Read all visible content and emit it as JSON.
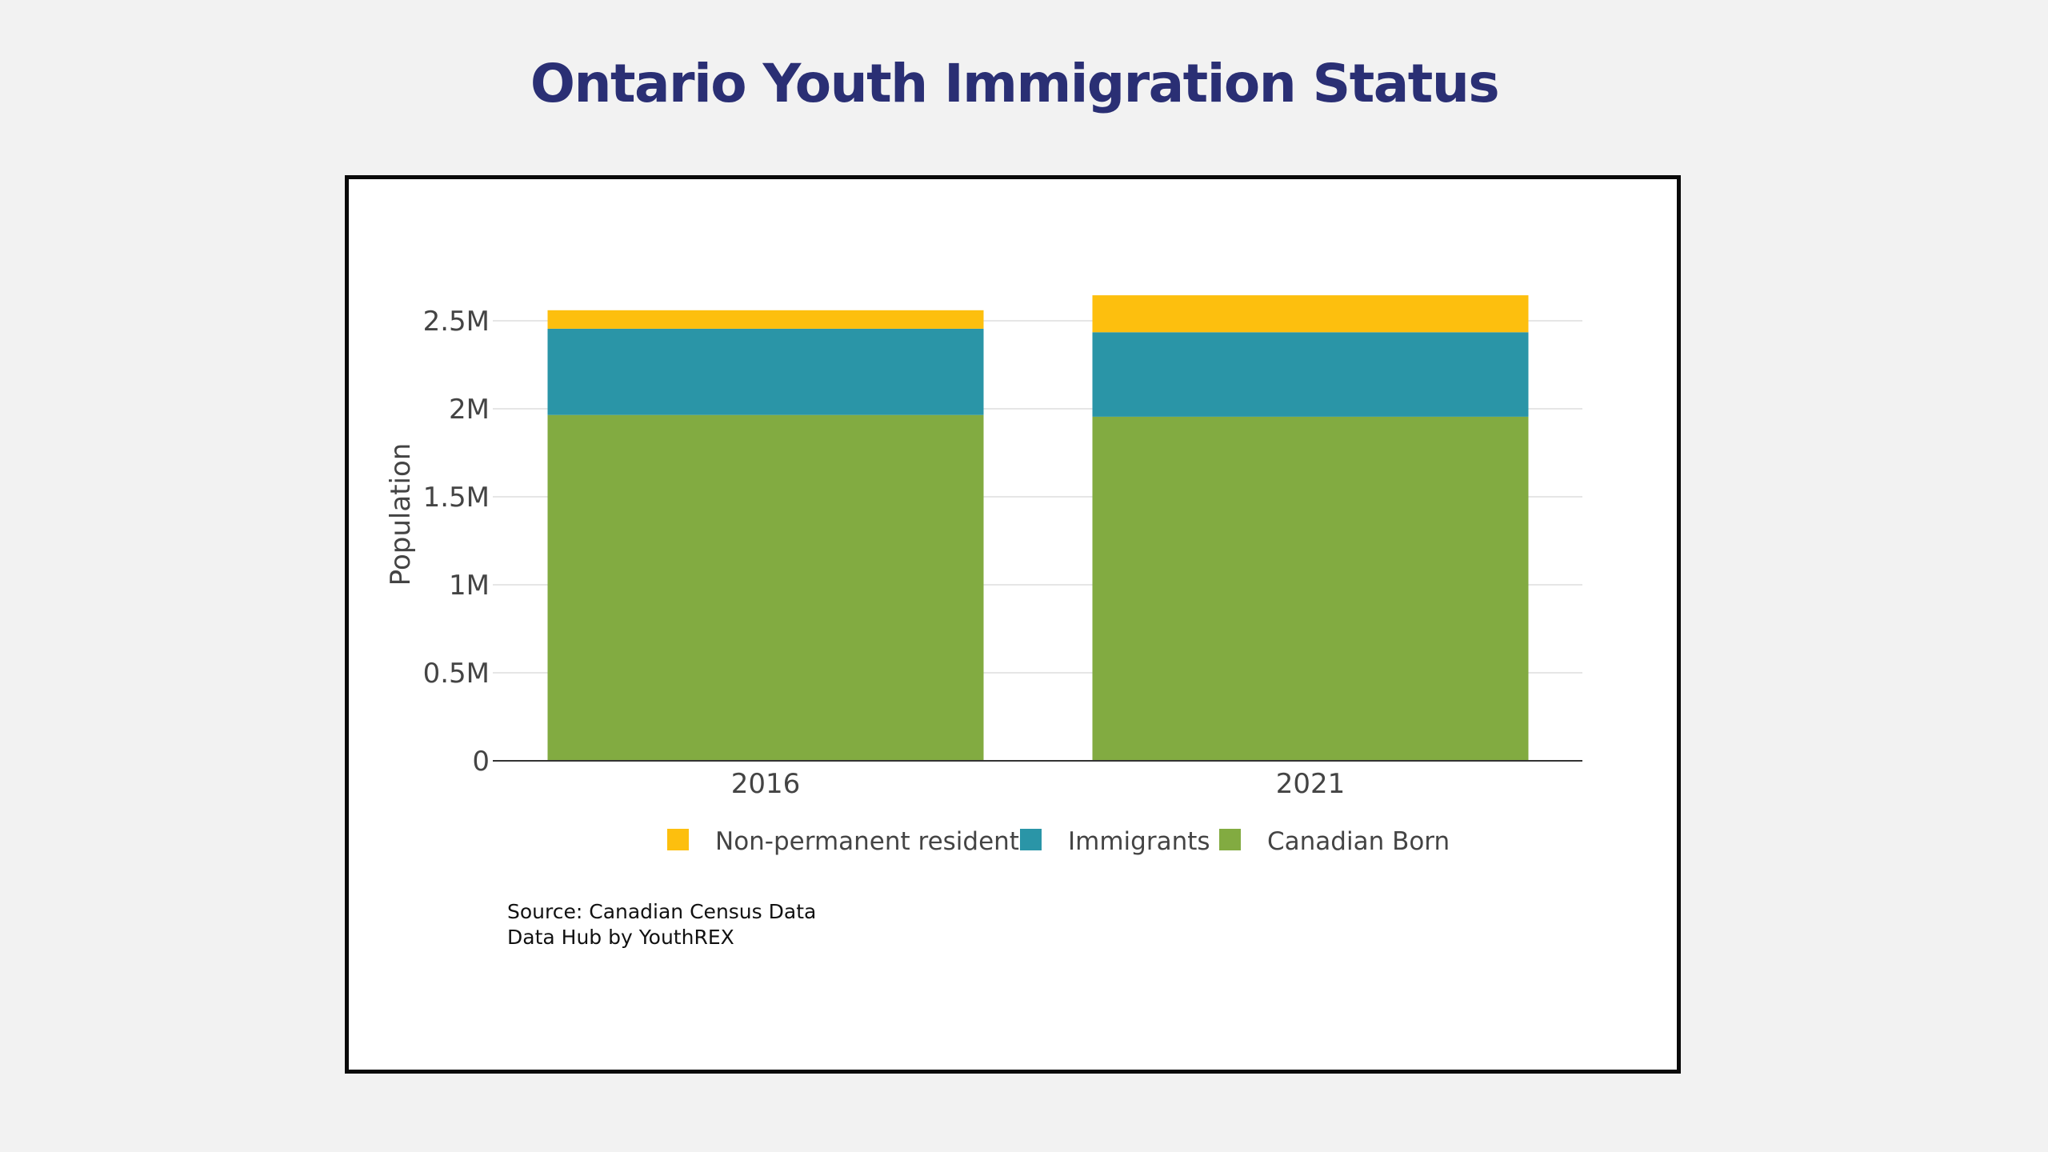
{
  "page": {
    "title": "Ontario Youth Immigration Status"
  },
  "chart_data": {
    "type": "bar",
    "stacked": true,
    "categories": [
      "2016",
      "2021"
    ],
    "series": [
      {
        "name": "Canadian Born",
        "color": "#82ab41",
        "values": [
          1965000,
          1955000
        ]
      },
      {
        "name": "Immigrants",
        "color": "#2a95a7",
        "values": [
          490000,
          480000
        ]
      },
      {
        "name": "Non-permanent residents",
        "color": "#fdbf0e",
        "values": [
          105000,
          210000
        ]
      }
    ],
    "legend_order": [
      "Non-permanent residents",
      "Immigrants",
      "Canadian Born"
    ],
    "legend_position": "bottom",
    "xlabel": "",
    "ylabel": "Population",
    "ylim": [
      0,
      2700000
    ],
    "yticks": [
      0,
      500000,
      1000000,
      1500000,
      2000000,
      2500000
    ],
    "ytick_labels": [
      "0",
      "0.5M",
      "1M",
      "1.5M",
      "2M",
      "2.5M"
    ],
    "grid": true
  },
  "footer": {
    "source_line": "Source: Canadian Census Data",
    "credit_line": "Data Hub by YouthREX"
  }
}
